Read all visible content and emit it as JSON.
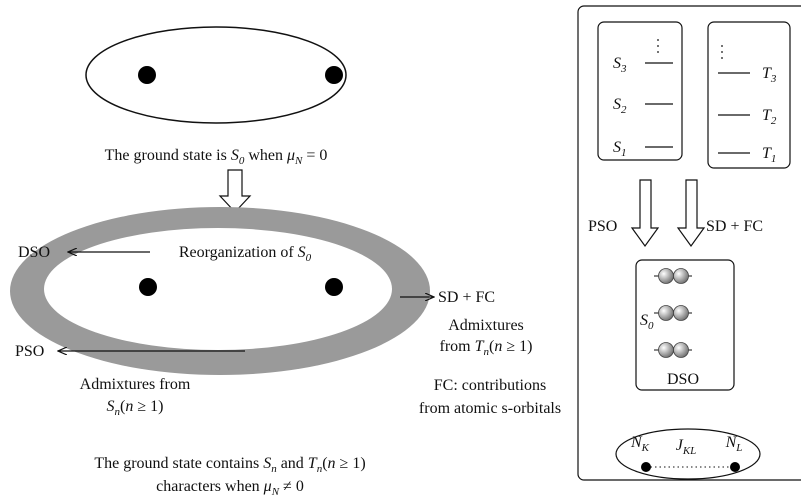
{
  "left": {
    "ground_caption": [
      [
        "The ground state is ",
        "r"
      ],
      [
        "S",
        "i"
      ],
      [
        "0",
        "sub"
      ],
      [
        " when ",
        "r"
      ],
      [
        "μ",
        "i"
      ],
      [
        "N",
        "sub"
      ],
      [
        " = 0",
        "r"
      ]
    ],
    "reorganization": [
      [
        "Reorganization of ",
        "r"
      ],
      [
        "S",
        "i"
      ],
      [
        "0",
        "sub"
      ]
    ],
    "dso": "DSO",
    "pso": "PSO",
    "sd_fc": "SD + FC",
    "admixtures_t_line1": "Admixtures",
    "admixtures_t_line2": [
      [
        "from ",
        "r"
      ],
      [
        "T",
        "i"
      ],
      [
        "n",
        "sub"
      ],
      [
        "(",
        "r"
      ],
      [
        "n",
        "i"
      ],
      [
        " ≥ 1)",
        "r"
      ]
    ],
    "admixtures_s_line1": "Admixtures from",
    "admixtures_s_line2": [
      [
        "S",
        "i"
      ],
      [
        "n",
        "sub"
      ],
      [
        "(",
        "r"
      ],
      [
        "n",
        "i"
      ],
      [
        " ≥ 1)",
        "r"
      ]
    ],
    "fc_line1": "FC: contributions",
    "fc_line2": "from atomic s-orbitals",
    "bottom_line1": [
      [
        "The ground state contains ",
        "r"
      ],
      [
        "S",
        "i"
      ],
      [
        "n",
        "sub"
      ],
      [
        " and ",
        "r"
      ],
      [
        "T",
        "i"
      ],
      [
        "n",
        "sub"
      ],
      [
        "(",
        "r"
      ],
      [
        "n",
        "i"
      ],
      [
        " ≥ 1)",
        "r"
      ]
    ],
    "bottom_line2": [
      [
        "characters when ",
        "r"
      ],
      [
        "μ",
        "i"
      ],
      [
        "N",
        "sub"
      ],
      [
        " ≠ 0",
        "r"
      ]
    ]
  },
  "right": {
    "s3": [
      [
        "S",
        "i"
      ],
      [
        "3",
        "sub"
      ]
    ],
    "s2": [
      [
        "S",
        "i"
      ],
      [
        "2",
        "sub"
      ]
    ],
    "s1": [
      [
        "S",
        "i"
      ],
      [
        "1",
        "sub"
      ]
    ],
    "t3": [
      [
        "T",
        "i"
      ],
      [
        "3",
        "sub"
      ]
    ],
    "t2": [
      [
        "T",
        "i"
      ],
      [
        "2",
        "sub"
      ]
    ],
    "t1": [
      [
        "T",
        "i"
      ],
      [
        "1",
        "sub"
      ]
    ],
    "pso": "PSO",
    "sd_fc": "SD + FC",
    "s0": [
      [
        "S",
        "i"
      ],
      [
        "0",
        "sub"
      ]
    ],
    "dso": "DSO",
    "nk": [
      [
        "N",
        "i"
      ],
      [
        "K",
        "sub"
      ]
    ],
    "jkl": [
      [
        "J",
        "i"
      ],
      [
        "KL",
        "sub"
      ]
    ],
    "nl": [
      [
        "N",
        "i"
      ],
      [
        "L",
        "sub"
      ]
    ]
  }
}
